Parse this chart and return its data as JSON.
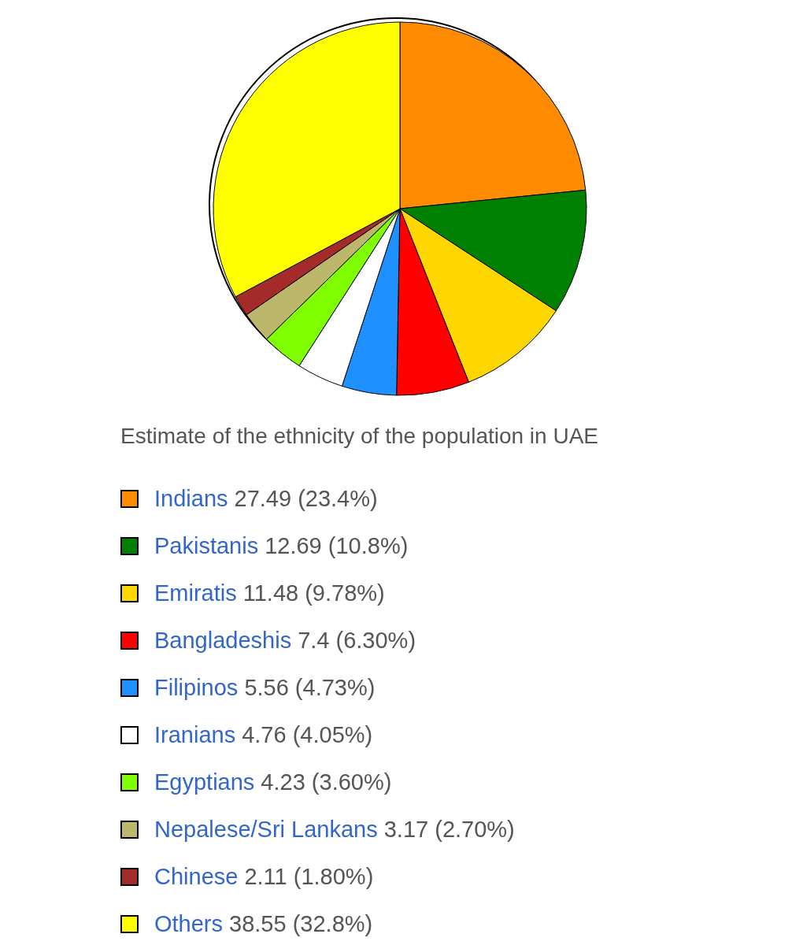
{
  "chart_data": {
    "type": "pie",
    "title": "Estimate of the ethnicity of the population in UAE",
    "categories": [
      "Indians",
      "Pakistanis",
      "Emiratis",
      "Bangladeshis",
      "Filipinos",
      "Iranians",
      "Egyptians",
      "Nepalese/Sri Lankans",
      "Chinese",
      "Others"
    ],
    "values": [
      27.49,
      12.69,
      11.48,
      7.4,
      5.56,
      4.76,
      4.23,
      3.17,
      2.11,
      38.55
    ],
    "value_labels": [
      "27.49 (23.4%)",
      "12.69 (10.8%)",
      "11.48 (9.78%)",
      "7.4 (6.30%)",
      "5.56 (4.73%)",
      "4.76 (4.05%)",
      "4.23 (3.60%)",
      "3.17 (2.70%)",
      "2.11 (1.80%)",
      "38.55 (32.8%)"
    ],
    "colors": [
      "#ff8c00",
      "#008000",
      "#ffd700",
      "#ff0000",
      "#1e90ff",
      "#ffffff",
      "#7fff00",
      "#bdb76b",
      "#a52a2a",
      "#ffff00"
    ],
    "legend": "bottom"
  }
}
